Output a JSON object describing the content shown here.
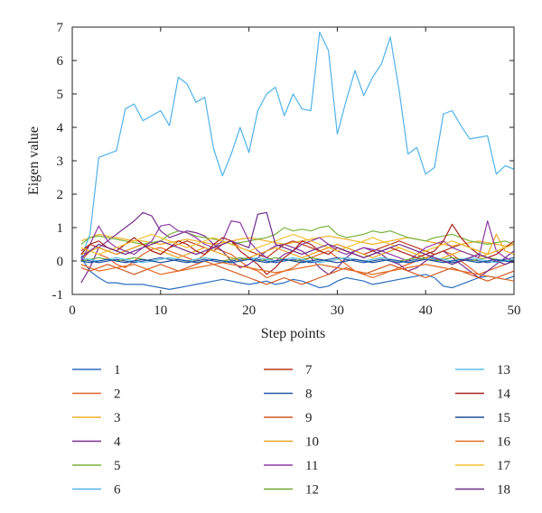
{
  "chart_data": {
    "type": "line",
    "xlabel": "Step points",
    "ylabel": "Eigen value",
    "xlim": [
      0,
      50
    ],
    "ylim": [
      -1,
      7
    ],
    "xticks": [
      0,
      10,
      20,
      30,
      40,
      50
    ],
    "yticks": [
      -1,
      0,
      1,
      2,
      3,
      4,
      5,
      6,
      7
    ],
    "grid": false,
    "legend_position": "bottom",
    "x": [
      1,
      2,
      3,
      4,
      5,
      6,
      7,
      8,
      9,
      10,
      11,
      12,
      13,
      14,
      15,
      16,
      17,
      18,
      19,
      20,
      21,
      22,
      23,
      24,
      25,
      26,
      27,
      28,
      29,
      30,
      31,
      32,
      33,
      34,
      35,
      36,
      37,
      38,
      39,
      40,
      41,
      42,
      43,
      44,
      45,
      46,
      47,
      48,
      49,
      50
    ],
    "series": [
      {
        "name": "1",
        "color": "#2b6fc0",
        "values": [
          0.1,
          -0.3,
          -0.5,
          -0.65,
          -0.65,
          -0.7,
          -0.7,
          -0.7,
          -0.75,
          -0.8,
          -0.85,
          -0.8,
          -0.75,
          -0.7,
          -0.65,
          -0.6,
          -0.55,
          -0.6,
          -0.65,
          -0.7,
          -0.65,
          -0.6,
          -0.7,
          -0.65,
          -0.55,
          -0.6,
          -0.7,
          -0.8,
          -0.75,
          -0.6,
          -0.5,
          -0.55,
          -0.6,
          -0.7,
          -0.65,
          -0.6,
          -0.55,
          -0.5,
          -0.45,
          -0.4,
          -0.5,
          -0.75,
          -0.8,
          -0.7,
          -0.6,
          -0.5,
          -0.45,
          -0.5,
          -0.55,
          -0.45
        ]
      },
      {
        "name": "2",
        "color": "#e0662a",
        "values": [
          0.0,
          0.3,
          0.2,
          0.1,
          -0.1,
          -0.2,
          0.0,
          0.2,
          0.35,
          0.4,
          0.3,
          0.2,
          0.1,
          0.0,
          0.2,
          0.4,
          0.3,
          0.2,
          0.0,
          -0.2,
          -0.3,
          -0.5,
          -0.4,
          -0.3,
          -0.2,
          0.0,
          0.1,
          0.2,
          0.3,
          0.1,
          -0.1,
          -0.3,
          -0.4,
          -0.5,
          -0.4,
          -0.3,
          -0.2,
          -0.1,
          0.0,
          0.1,
          0.2,
          0.3,
          0.2,
          0.0,
          -0.2,
          -0.4,
          -0.3,
          -0.2,
          -0.1,
          0.0
        ]
      },
      {
        "name": "3",
        "color": "#f0b22a",
        "values": [
          0.6,
          0.7,
          0.8,
          0.75,
          0.7,
          0.65,
          0.6,
          0.6,
          0.55,
          0.5,
          0.55,
          0.6,
          0.65,
          0.6,
          0.55,
          0.5,
          0.55,
          0.6,
          0.65,
          0.7,
          0.65,
          0.6,
          0.55,
          0.5,
          0.55,
          0.6,
          0.65,
          0.7,
          0.75,
          0.7,
          0.65,
          0.6,
          0.55,
          0.5,
          0.55,
          0.6,
          0.65,
          0.7,
          0.65,
          0.6,
          0.55,
          0.5,
          0.45,
          0.5,
          0.55,
          0.6,
          0.55,
          0.5,
          0.45,
          0.5
        ]
      },
      {
        "name": "4",
        "color": "#7b2d8e",
        "values": [
          -0.65,
          -0.2,
          0.4,
          0.6,
          0.8,
          1.0,
          1.2,
          1.45,
          1.35,
          0.9,
          0.7,
          0.8,
          0.9,
          0.85,
          0.75,
          0.5,
          0.3,
          0.0,
          -0.2,
          -0.1,
          0.1,
          0.3,
          0.45,
          0.5,
          0.4,
          0.3,
          0.1,
          -0.2,
          -0.4,
          -0.2,
          0.1,
          0.3,
          0.4,
          0.3,
          0.2,
          0.0,
          -0.1,
          -0.3,
          -0.2,
          0.0,
          0.2,
          0.3,
          0.1,
          -0.1,
          -0.3,
          -0.5,
          -0.3,
          -0.1,
          0.1,
          0.3
        ]
      },
      {
        "name": "5",
        "color": "#7ab33d",
        "values": [
          0.5,
          0.7,
          0.75,
          0.7,
          0.65,
          0.6,
          0.55,
          0.5,
          0.55,
          0.6,
          0.8,
          0.9,
          0.85,
          0.75,
          0.7,
          0.65,
          0.6,
          0.5,
          0.55,
          0.6,
          0.65,
          0.7,
          0.8,
          1.0,
          0.9,
          0.95,
          0.9,
          1.0,
          1.05,
          0.8,
          0.7,
          0.75,
          0.8,
          0.9,
          0.85,
          0.9,
          0.8,
          0.7,
          0.65,
          0.6,
          0.7,
          0.75,
          0.8,
          0.7,
          0.6,
          0.55,
          0.5,
          0.55,
          0.6,
          0.5
        ]
      },
      {
        "name": "6",
        "color": "#4fb3e8",
        "values": [
          0.1,
          0.8,
          3.1,
          3.2,
          3.3,
          4.55,
          4.7,
          4.2,
          4.35,
          4.5,
          4.05,
          5.5,
          5.3,
          4.75,
          4.9,
          3.35,
          2.55,
          3.2,
          4.0,
          3.25,
          4.5,
          5.0,
          5.2,
          4.35,
          5.0,
          4.55,
          4.5,
          6.85,
          6.3,
          3.8,
          4.8,
          5.7,
          4.95,
          5.5,
          5.9,
          6.7,
          5.1,
          3.2,
          3.4,
          2.6,
          2.8,
          4.4,
          4.5,
          4.05,
          3.65,
          3.7,
          3.75,
          2.6,
          2.85,
          2.75
        ]
      },
      {
        "name": "7",
        "color": "#b83a1c",
        "values": [
          0.3,
          0.5,
          0.4,
          0.3,
          0.2,
          0.3,
          0.4,
          0.5,
          0.3,
          0.2,
          0.4,
          0.5,
          0.6,
          0.5,
          0.4,
          0.3,
          0.5,
          0.6,
          0.4,
          0.3,
          0.2,
          0.1,
          0.3,
          0.5,
          0.6,
          0.5,
          0.4,
          0.3,
          0.4,
          0.5,
          0.4,
          0.3,
          0.2,
          0.3,
          0.4,
          0.5,
          0.6,
          0.5,
          0.4,
          0.3,
          0.2,
          0.3,
          0.4,
          0.5,
          0.4,
          0.3,
          0.2,
          0.3,
          0.4,
          0.5
        ]
      },
      {
        "name": "8",
        "color": "#2557a8",
        "values": [
          0.05,
          0.0,
          -0.05,
          0.0,
          0.05,
          0.0,
          -0.05,
          0.0,
          0.05,
          0.1,
          0.05,
          0.0,
          -0.05,
          0.0,
          0.05,
          0.0,
          -0.05,
          0.0,
          0.05,
          0.1,
          0.05,
          0.0,
          -0.05,
          0.0,
          0.05,
          0.0,
          -0.05,
          0.0,
          0.05,
          0.1,
          0.05,
          0.0,
          -0.05,
          0.0,
          0.05,
          0.0,
          -0.05,
          0.0,
          0.05,
          0.1,
          0.05,
          0.0,
          -0.05,
          0.0,
          0.05,
          0.0,
          -0.05,
          0.0,
          0.05,
          0.1
        ]
      },
      {
        "name": "9",
        "color": "#d25a22",
        "values": [
          -0.2,
          -0.3,
          -0.2,
          -0.1,
          -0.2,
          -0.3,
          -0.4,
          -0.3,
          -0.2,
          -0.1,
          -0.2,
          -0.3,
          -0.2,
          -0.1,
          0.0,
          -0.1,
          -0.2,
          -0.3,
          -0.4,
          -0.5,
          -0.6,
          -0.7,
          -0.6,
          -0.5,
          -0.6,
          -0.7,
          -0.6,
          -0.5,
          -0.4,
          -0.3,
          -0.2,
          -0.3,
          -0.4,
          -0.3,
          -0.2,
          -0.1,
          -0.2,
          -0.3,
          -0.4,
          -0.5,
          -0.4,
          -0.3,
          -0.2,
          -0.3,
          -0.4,
          -0.5,
          -0.6,
          -0.5,
          -0.4,
          -0.3
        ]
      },
      {
        "name": "10",
        "color": "#e8a623",
        "values": [
          0.2,
          0.3,
          0.4,
          0.3,
          0.2,
          0.3,
          0.4,
          0.5,
          0.4,
          0.3,
          0.2,
          0.1,
          0.2,
          0.3,
          0.4,
          0.3,
          0.2,
          0.1,
          0.0,
          0.1,
          0.2,
          0.3,
          0.4,
          0.3,
          0.2,
          0.1,
          0.2,
          0.3,
          0.4,
          0.5,
          0.4,
          0.3,
          0.2,
          0.1,
          0.2,
          0.3,
          0.4,
          0.3,
          0.2,
          0.1,
          0.0,
          0.1,
          0.2,
          0.3,
          0.2,
          0.1,
          0.2,
          0.8,
          0.3,
          0.2
        ]
      },
      {
        "name": "11",
        "color": "#8e3aa3",
        "values": [
          0.0,
          0.5,
          1.05,
          0.6,
          0.4,
          0.3,
          0.2,
          0.4,
          0.6,
          1.05,
          1.1,
          0.9,
          0.85,
          0.7,
          0.5,
          0.4,
          0.6,
          1.2,
          1.15,
          0.6,
          0.3,
          0.1,
          0.0,
          0.2,
          0.3,
          0.5,
          0.6,
          0.7,
          0.5,
          0.3,
          0.2,
          0.3,
          0.4,
          0.35,
          0.3,
          0.2,
          0.1,
          0.0,
          0.2,
          0.4,
          0.5,
          0.6,
          0.4,
          0.3,
          0.2,
          0.1,
          1.2,
          0.3,
          0.1,
          0.0
        ]
      },
      {
        "name": "12",
        "color": "#6fa832",
        "values": [
          0.0,
          0.05,
          0.1,
          0.05,
          0.0,
          0.05,
          0.1,
          0.05,
          0.0,
          0.05,
          0.1,
          0.05,
          0.0,
          0.05,
          0.1,
          0.05,
          0.0,
          0.05,
          0.1,
          0.05,
          0.0,
          0.05,
          0.1,
          0.05,
          0.0,
          0.05,
          0.1,
          0.05,
          0.0,
          0.05,
          0.1,
          0.05,
          0.0,
          0.05,
          0.1,
          0.05,
          0.0,
          0.05,
          0.1,
          0.05,
          0.0,
          0.05,
          0.1,
          0.05,
          0.0,
          0.05,
          0.1,
          0.05,
          0.0,
          0.05
        ]
      },
      {
        "name": "13",
        "color": "#5ec0ec",
        "values": [
          0.1,
          0.05,
          0.0,
          0.05,
          0.1,
          0.05,
          0.0,
          -0.05,
          0.0,
          0.05,
          0.1,
          0.05,
          0.0,
          0.05,
          0.1,
          0.05,
          0.0,
          -0.05,
          0.0,
          0.05,
          0.1,
          0.05,
          0.0,
          0.05,
          0.1,
          0.05,
          0.0,
          -0.05,
          0.0,
          0.05,
          0.1,
          0.05,
          0.0,
          0.05,
          0.1,
          0.05,
          0.0,
          -0.05,
          0.0,
          0.05,
          0.1,
          0.05,
          0.0,
          0.05,
          0.1,
          0.05,
          0.0,
          -0.05,
          0.0,
          0.05
        ]
      },
      {
        "name": "14",
        "color": "#a8231c",
        "values": [
          0.2,
          0.5,
          0.6,
          0.4,
          0.3,
          0.5,
          0.7,
          0.5,
          0.3,
          0.2,
          0.4,
          0.6,
          0.5,
          0.3,
          0.2,
          0.5,
          0.7,
          0.6,
          0.3,
          0.1,
          -0.1,
          -0.4,
          -0.2,
          0.1,
          0.3,
          0.6,
          0.5,
          0.3,
          0.2,
          0.4,
          0.3,
          0.2,
          0.1,
          0.2,
          0.3,
          0.4,
          0.3,
          0.2,
          0.1,
          0.2,
          0.3,
          0.6,
          1.1,
          0.7,
          0.4,
          0.2,
          0.1,
          0.2,
          0.4,
          0.6
        ]
      },
      {
        "name": "15",
        "color": "#1d4f9c",
        "values": [
          0.0,
          -0.05,
          0.0,
          0.05,
          0.0,
          -0.05,
          0.0,
          0.05,
          0.0,
          -0.05,
          0.0,
          0.05,
          0.0,
          -0.05,
          0.0,
          0.05,
          0.0,
          -0.05,
          0.0,
          0.05,
          0.0,
          -0.05,
          0.0,
          0.05,
          0.0,
          -0.05,
          0.0,
          0.05,
          0.0,
          -0.05,
          0.0,
          0.05,
          0.0,
          -0.05,
          0.0,
          0.05,
          0.0,
          -0.05,
          0.0,
          0.05,
          0.0,
          -0.05,
          0.0,
          0.05,
          0.0,
          -0.05,
          0.0,
          0.05,
          0.0,
          -0.05
        ]
      },
      {
        "name": "16",
        "color": "#e36b21",
        "values": [
          -0.1,
          -0.2,
          -0.3,
          -0.25,
          -0.2,
          -0.15,
          -0.1,
          -0.2,
          -0.3,
          -0.4,
          -0.35,
          -0.3,
          -0.25,
          -0.2,
          -0.15,
          -0.1,
          -0.05,
          -0.1,
          -0.15,
          -0.2,
          -0.25,
          -0.3,
          -0.35,
          -0.3,
          -0.25,
          -0.2,
          -0.15,
          -0.1,
          -0.15,
          -0.2,
          -0.25,
          -0.3,
          -0.35,
          -0.4,
          -0.35,
          -0.3,
          -0.25,
          -0.2,
          -0.15,
          -0.1,
          -0.15,
          -0.2,
          -0.25,
          -0.3,
          -0.35,
          -0.4,
          -0.45,
          -0.5,
          -0.55,
          -0.6
        ]
      },
      {
        "name": "17",
        "color": "#f2c230",
        "values": [
          0.4,
          0.3,
          0.2,
          0.3,
          0.4,
          0.5,
          0.6,
          0.7,
          0.8,
          0.7,
          0.6,
          0.5,
          0.4,
          0.5,
          0.6,
          0.7,
          0.6,
          0.5,
          0.4,
          0.3,
          0.4,
          0.5,
          0.6,
          0.7,
          0.8,
          0.7,
          0.6,
          0.5,
          0.4,
          0.3,
          0.4,
          0.5,
          0.6,
          0.7,
          0.6,
          0.5,
          0.4,
          0.3,
          0.2,
          0.3,
          0.4,
          0.5,
          0.6,
          0.5,
          0.4,
          0.3,
          0.2,
          0.3,
          0.4,
          0.5
        ]
      },
      {
        "name": "18",
        "color": "#6e2a86",
        "values": [
          0.1,
          0.3,
          0.5,
          0.4,
          0.3,
          0.2,
          0.3,
          0.4,
          0.5,
          0.6,
          0.5,
          0.4,
          0.3,
          0.2,
          0.3,
          0.4,
          0.5,
          0.6,
          0.5,
          0.4,
          1.4,
          1.45,
          0.5,
          0.4,
          0.3,
          0.2,
          0.3,
          0.4,
          0.5,
          0.4,
          0.3,
          0.2,
          0.1,
          0.2,
          0.3,
          0.4,
          0.5,
          0.4,
          0.3,
          0.2,
          0.1,
          0.0,
          -0.1,
          0.0,
          0.1,
          0.2,
          0.1,
          0.0,
          -0.1,
          0.0
        ]
      }
    ]
  }
}
